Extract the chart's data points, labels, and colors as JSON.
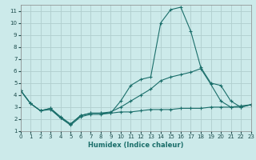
{
  "xlabel": "Humidex (Indice chaleur)",
  "xlim": [
    0,
    23
  ],
  "ylim": [
    1,
    11.5
  ],
  "bg_color": "#cceaea",
  "grid_color": "#b0cece",
  "line_color": "#1a6e6a",
  "xticks": [
    0,
    1,
    2,
    3,
    4,
    5,
    6,
    7,
    8,
    9,
    10,
    11,
    12,
    13,
    14,
    15,
    16,
    17,
    18,
    19,
    20,
    21,
    22,
    23
  ],
  "yticks": [
    1,
    2,
    3,
    4,
    5,
    6,
    7,
    8,
    9,
    10,
    11
  ],
  "line1_x": [
    0,
    1,
    2,
    3,
    4,
    5,
    6,
    7,
    8,
    9,
    10,
    11,
    12,
    13,
    14,
    15,
    16,
    17,
    18,
    19,
    20,
    21,
    22,
    23
  ],
  "line1_y": [
    4.4,
    3.3,
    2.7,
    2.9,
    2.2,
    1.6,
    2.3,
    2.5,
    2.5,
    2.5,
    2.6,
    2.6,
    2.7,
    2.8,
    2.8,
    2.8,
    2.9,
    2.9,
    2.9,
    3.0,
    3.0,
    3.0,
    3.1,
    3.2
  ],
  "line2_x": [
    0,
    1,
    2,
    3,
    4,
    5,
    6,
    7,
    8,
    9,
    10,
    11,
    12,
    13,
    14,
    15,
    16,
    17,
    18,
    19,
    20,
    21,
    22,
    23
  ],
  "line2_y": [
    4.4,
    3.3,
    2.7,
    2.8,
    2.1,
    1.5,
    2.2,
    2.4,
    2.4,
    2.5,
    3.5,
    4.8,
    5.3,
    5.5,
    10.0,
    11.1,
    11.3,
    9.3,
    6.3,
    5.0,
    4.8,
    3.5,
    3.0,
    3.2
  ],
  "line3_x": [
    0,
    1,
    2,
    3,
    4,
    5,
    6,
    7,
    8,
    9,
    10,
    11,
    12,
    13,
    14,
    15,
    16,
    17,
    18,
    19,
    20,
    21,
    22,
    23
  ],
  "line3_y": [
    4.4,
    3.3,
    2.7,
    2.9,
    2.1,
    1.6,
    2.3,
    2.5,
    2.5,
    2.6,
    3.0,
    3.5,
    4.0,
    4.5,
    5.2,
    5.5,
    5.7,
    5.9,
    6.2,
    4.9,
    3.5,
    3.0,
    3.0,
    3.2
  ]
}
